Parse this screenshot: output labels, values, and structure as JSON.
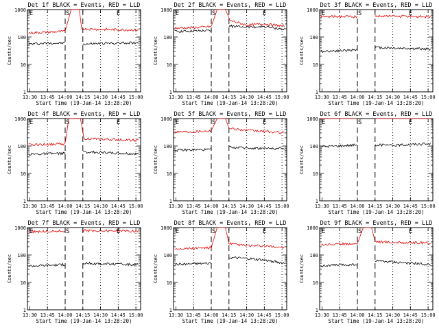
{
  "chart_data": [
    {
      "type": "line",
      "title": "Det 1f BLACK = Events, RED = LLD",
      "xlabel": "Start Time (19-Jan-14 13:28:20)",
      "ylabel": "Counts/sec",
      "x_tick_labels": [
        "13:30",
        "13:45",
        "14:00",
        "14:15",
        "14:30",
        "14:45",
        "15:00"
      ],
      "y_tick_labels": [
        "1",
        "10",
        "100",
        "1000"
      ],
      "ylim": [
        1,
        1000
      ],
      "y_scale": "log",
      "markers": [
        "E",
        "S",
        "E"
      ],
      "series": [
        {
          "color": "#000000",
          "segments": [
            {
              "x": [
                "13:29",
                "13:45",
                "14:00"
              ],
              "y": [
                55,
                60,
                60
              ]
            },
            {
              "x": [
                "14:15",
                "14:30",
                "14:45",
                "15:02"
              ],
              "y": [
                55,
                58,
                60,
                62
              ]
            }
          ]
        },
        {
          "color": "#e00000",
          "segments": [
            {
              "x": [
                "13:29",
                "13:45",
                "14:00",
                "14:05",
                "14:12",
                "14:14",
                "14:30",
                "14:45",
                "15:02"
              ],
              "y": [
                140,
                150,
                160,
                1000,
                1000,
                200,
                190,
                185,
                180
              ]
            }
          ]
        }
      ]
    },
    {
      "type": "line",
      "title": "Det 2f BLACK = Events, RED = LLD",
      "xlabel": "Start Time (19-Jan-14 13:28:20)",
      "ylabel": "Counts/sec",
      "x_tick_labels": [
        "13:30",
        "13:45",
        "14:00",
        "14:15",
        "14:30",
        "14:45",
        "15:00"
      ],
      "y_tick_labels": [
        "1",
        "10",
        "100",
        "1000"
      ],
      "ylim": [
        1,
        1000
      ],
      "y_scale": "log",
      "markers": [
        "E",
        "S",
        "E"
      ],
      "series": [
        {
          "color": "#000000",
          "segments": [
            {
              "x": [
                "13:29",
                "13:45",
                "14:00"
              ],
              "y": [
                160,
                165,
                170
              ]
            },
            {
              "x": [
                "14:15",
                "14:30",
                "14:45",
                "15:02"
              ],
              "y": [
                250,
                230,
                240,
                190
              ]
            }
          ]
        },
        {
          "color": "#e00000",
          "segments": [
            {
              "x": [
                "13:29",
                "13:45",
                "14:00",
                "14:05",
                "14:12",
                "14:16",
                "14:30",
                "14:45",
                "15:02"
              ],
              "y": [
                210,
                220,
                240,
                1000,
                1000,
                400,
                270,
                300,
                250
              ]
            }
          ]
        }
      ]
    },
    {
      "type": "line",
      "title": "Det 3f BLACK = Events, RED = LLD",
      "xlabel": "Start Time (19-Jan-14 13:28:20)",
      "ylabel": "Counts/sec",
      "x_tick_labels": [
        "13:30",
        "13:45",
        "14:00",
        "14:15",
        "14:30",
        "14:45",
        "15:00"
      ],
      "y_tick_labels": [
        "1",
        "10",
        "100",
        "1000"
      ],
      "ylim": [
        1,
        1000
      ],
      "y_scale": "log",
      "markers": [
        "E",
        "S",
        "E"
      ],
      "series": [
        {
          "color": "#000000",
          "segments": [
            {
              "x": [
                "13:29",
                "13:45",
                "14:00"
              ],
              "y": [
                30,
                32,
                34
              ]
            },
            {
              "x": [
                "14:15",
                "14:30",
                "14:45",
                "15:02"
              ],
              "y": [
                42,
                40,
                38,
                36
              ]
            }
          ]
        },
        {
          "color": "#e00000",
          "segments": [
            {
              "x": [
                "13:29",
                "13:45",
                "14:00"
              ],
              "y": [
                540,
                560,
                560
              ]
            },
            {
              "x": [
                "14:15",
                "14:30",
                "14:45",
                "15:02"
              ],
              "y": [
                580,
                570,
                560,
                550
              ]
            }
          ]
        }
      ]
    },
    {
      "type": "line",
      "title": "Det 4f BLACK = Events, RED = LLD",
      "xlabel": "Start Time (19-Jan-14 13:28:20)",
      "ylabel": "Counts/sec",
      "x_tick_labels": [
        "13:30",
        "13:45",
        "14:00",
        "14:15",
        "14:30",
        "14:45",
        "15:00"
      ],
      "y_tick_labels": [
        "1",
        "10",
        "100",
        "1000"
      ],
      "ylim": [
        1,
        1000
      ],
      "y_scale": "log",
      "markers": [
        "E",
        "S",
        "E"
      ],
      "series": [
        {
          "color": "#000000",
          "segments": [
            {
              "x": [
                "13:29",
                "13:45",
                "14:00"
              ],
              "y": [
                50,
                52,
                54
              ]
            },
            {
              "x": [
                "14:15",
                "14:30",
                "14:45",
                "15:02"
              ],
              "y": [
                60,
                58,
                55,
                52
              ]
            }
          ]
        },
        {
          "color": "#e00000",
          "segments": [
            {
              "x": [
                "13:29",
                "13:45",
                "14:00",
                "14:03",
                "14:13",
                "14:16",
                "14:30",
                "14:45",
                "15:02"
              ],
              "y": [
                110,
                115,
                120,
                1000,
                1000,
                190,
                175,
                170,
                160
              ]
            }
          ]
        }
      ]
    },
    {
      "type": "line",
      "title": "Det 5f BLACK = Events, RED = LLD",
      "xlabel": "Start Time (19-Jan-14 13:28:20)",
      "ylabel": "Counts/sec",
      "x_tick_labels": [
        "13:30",
        "13:45",
        "14:00",
        "14:15",
        "14:30",
        "14:45",
        "15:00"
      ],
      "y_tick_labels": [
        "1",
        "10",
        "100",
        "1000"
      ],
      "ylim": [
        1,
        1000
      ],
      "y_scale": "log",
      "markers": [
        "E",
        "S",
        "E"
      ],
      "series": [
        {
          "color": "#000000",
          "segments": [
            {
              "x": [
                "13:29",
                "13:45",
                "14:00"
              ],
              "y": [
                70,
                72,
                74
              ]
            },
            {
              "x": [
                "14:15",
                "14:30",
                "14:45",
                "15:02"
              ],
              "y": [
                90,
                85,
                82,
                80
              ]
            }
          ]
        },
        {
          "color": "#e00000",
          "segments": [
            {
              "x": [
                "13:29",
                "13:45",
                "14:00",
                "14:05",
                "14:12",
                "14:15",
                "14:30",
                "14:45",
                "15:02"
              ],
              "y": [
                330,
                340,
                360,
                1000,
                1000,
                450,
                370,
                340,
                300
              ]
            }
          ]
        }
      ]
    },
    {
      "type": "line",
      "title": "Det 6f BLACK = Events, RED = LLD",
      "xlabel": "Start Time (19-Jan-14 13:28:20)",
      "ylabel": "Counts/sec",
      "x_tick_labels": [
        "13:30",
        "13:45",
        "14:00",
        "14:15",
        "14:30",
        "14:45",
        "15:00"
      ],
      "y_tick_labels": [
        "1",
        "10",
        "100",
        "1000"
      ],
      "ylim": [
        1,
        1000
      ],
      "y_scale": "log",
      "markers": [
        "E",
        "S",
        "E"
      ],
      "series": [
        {
          "color": "#000000",
          "segments": [
            {
              "x": [
                "13:29",
                "13:45",
                "14:00"
              ],
              "y": [
                95,
                100,
                110
              ]
            },
            {
              "x": [
                "14:15",
                "14:30",
                "14:45",
                "15:02"
              ],
              "y": [
                110,
                105,
                115,
                120
              ]
            }
          ]
        },
        {
          "color": "#e00000",
          "segments": [
            {
              "x": [
                "13:29",
                "13:45",
                "14:00"
              ],
              "y": [
                1000,
                1000,
                1000
              ]
            },
            {
              "x": [
                "14:15",
                "14:30",
                "14:45",
                "15:02"
              ],
              "y": [
                1000,
                1000,
                1000,
                1000
              ]
            }
          ]
        }
      ]
    },
    {
      "type": "line",
      "title": "Det 7f BLACK = Events, RED = LLD",
      "xlabel": "Start Time (19-Jan-14 13:28:20)",
      "ylabel": "Counts/sec",
      "x_tick_labels": [
        "13:30",
        "13:45",
        "14:00",
        "14:15",
        "14:30",
        "14:45",
        "15:00"
      ],
      "y_tick_labels": [
        "1",
        "10",
        "100",
        "1000"
      ],
      "ylim": [
        1,
        1000
      ],
      "y_scale": "log",
      "markers": [
        "E",
        "S",
        "E"
      ],
      "series": [
        {
          "color": "#000000",
          "segments": [
            {
              "x": [
                "13:29",
                "13:45",
                "14:00"
              ],
              "y": [
                40,
                42,
                45
              ]
            },
            {
              "x": [
                "14:15",
                "14:30",
                "14:45",
                "15:02"
              ],
              "y": [
                50,
                48,
                46,
                44
              ]
            }
          ]
        },
        {
          "color": "#e00000",
          "segments": [
            {
              "x": [
                "13:29",
                "13:45",
                "14:00"
              ],
              "y": [
                700,
                720,
                750
              ]
            },
            {
              "x": [
                "14:15",
                "14:30",
                "14:45",
                "15:02"
              ],
              "y": [
                780,
                760,
                750,
                740
              ]
            }
          ]
        }
      ]
    },
    {
      "type": "line",
      "title": "Det 8f BLACK = Events, RED = LLD",
      "xlabel": "Start Time (19-Jan-14 13:28:20)",
      "ylabel": "Counts/sec",
      "x_tick_labels": [
        "13:30",
        "13:45",
        "14:00",
        "14:15",
        "14:30",
        "14:45",
        "15:00"
      ],
      "y_tick_labels": [
        "1",
        "10",
        "100",
        "1000"
      ],
      "ylim": [
        1,
        1000
      ],
      "y_scale": "log",
      "markers": [
        "E",
        "S",
        "E"
      ],
      "series": [
        {
          "color": "#000000",
          "segments": [
            {
              "x": [
                "13:29",
                "13:45",
                "14:00"
              ],
              "y": [
                45,
                48,
                50
              ]
            },
            {
              "x": [
                "14:15",
                "14:30",
                "14:45",
                "15:02"
              ],
              "y": [
                80,
                75,
                65,
                50
              ]
            }
          ]
        },
        {
          "color": "#e00000",
          "segments": [
            {
              "x": [
                "13:29",
                "13:45",
                "14:00",
                "14:05",
                "14:12",
                "14:15",
                "14:30",
                "14:45",
                "15:02"
              ],
              "y": [
                170,
                175,
                185,
                1000,
                1000,
                260,
                220,
                210,
                190
              ]
            }
          ]
        }
      ]
    },
    {
      "type": "line",
      "title": "Det 9f BLACK = Events, RED = LLD",
      "xlabel": "Start Time (19-Jan-14 13:28:20)",
      "ylabel": "Counts/sec",
      "x_tick_labels": [
        "13:30",
        "13:45",
        "14:00",
        "14:15",
        "14:30",
        "14:45",
        "15:00"
      ],
      "y_tick_labels": [
        "1",
        "10",
        "100",
        "1000"
      ],
      "ylim": [
        1,
        1000
      ],
      "y_scale": "log",
      "markers": [
        "E",
        "S",
        "E"
      ],
      "series": [
        {
          "color": "#000000",
          "segments": [
            {
              "x": [
                "13:29",
                "13:45",
                "14:00"
              ],
              "y": [
                40,
                43,
                45
              ]
            },
            {
              "x": [
                "14:15",
                "14:30",
                "14:45",
                "15:02"
              ],
              "y": [
                60,
                55,
                50,
                45
              ]
            }
          ]
        },
        {
          "color": "#e00000",
          "segments": [
            {
              "x": [
                "13:29",
                "13:45",
                "14:00",
                "14:05",
                "14:12",
                "14:15",
                "14:30",
                "14:45",
                "15:02"
              ],
              "y": [
                240,
                250,
                260,
                1000,
                1000,
                310,
                290,
                280,
                270
              ]
            }
          ]
        }
      ]
    }
  ]
}
